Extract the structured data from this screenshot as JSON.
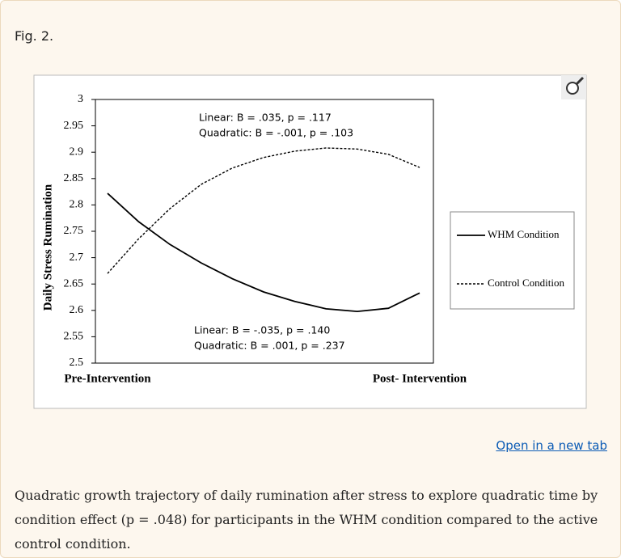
{
  "figure_label": "Fig. 2.",
  "chart_data": {
    "type": "line",
    "ylabel": "Daily Stress Rumination",
    "categories": [
      "Pre-Intervention",
      null,
      null,
      null,
      null,
      null,
      null,
      null,
      null,
      null,
      "Post- Intervention"
    ],
    "series": [
      {
        "name": "WHM Condition",
        "color": "#000000",
        "dash": false,
        "values": [
          2.822,
          2.768,
          2.725,
          2.69,
          2.66,
          2.635,
          2.617,
          2.603,
          2.598,
          2.604,
          2.633
        ]
      },
      {
        "name": "Control Condition",
        "color": "#000000",
        "dash": true,
        "values": [
          2.67,
          2.736,
          2.793,
          2.839,
          2.87,
          2.89,
          2.902,
          2.908,
          2.906,
          2.896,
          2.871
        ]
      }
    ],
    "ylim": [
      2.5,
      3
    ],
    "yticks": [
      2.5,
      2.55,
      2.6,
      2.65,
      2.7,
      2.75,
      2.8,
      2.85,
      2.9,
      2.95,
      3
    ],
    "annotations": [
      "Linear: B = .035, p = .117",
      "Quadratic: B = -.001, p = .103",
      "Linear: B = -.035, p = .140",
      "Quadratic: B = .001, p = .237"
    ],
    "legend": "right"
  },
  "link": "Open in a new tab",
  "caption": "Quadratic growth trajectory of daily rumination after stress to explore quadratic time by condition effect (p = .048) for participants in the WHM condition compared to the active control condition."
}
